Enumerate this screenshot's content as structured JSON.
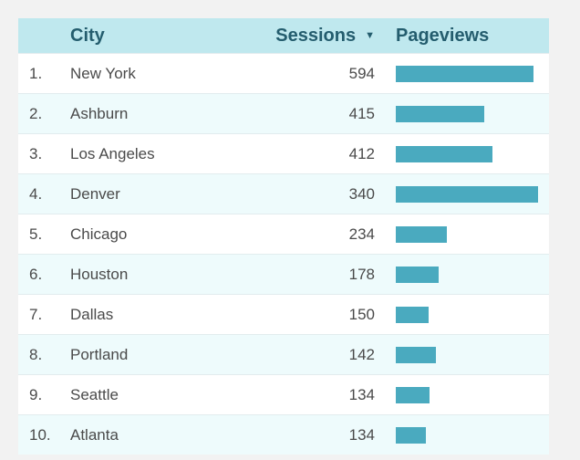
{
  "table": {
    "headers": {
      "index": "",
      "city": "City",
      "sessions": "Sessions",
      "pageviews": "Pageviews"
    },
    "sort_icon": "sort-descending-icon",
    "bar_color": "#4aaabf",
    "pageviews_max": 1,
    "rows": [
      {
        "index": "1.",
        "city": "New York",
        "sessions": "594",
        "pageviews_fraction": 0.97
      },
      {
        "index": "2.",
        "city": "Ashburn",
        "sessions": "415",
        "pageviews_fraction": 0.62
      },
      {
        "index": "3.",
        "city": "Los Angeles",
        "sessions": "412",
        "pageviews_fraction": 0.68
      },
      {
        "index": "4.",
        "city": "Denver",
        "sessions": "340",
        "pageviews_fraction": 1.0
      },
      {
        "index": "5.",
        "city": "Chicago",
        "sessions": "234",
        "pageviews_fraction": 0.36
      },
      {
        "index": "6.",
        "city": "Houston",
        "sessions": "178",
        "pageviews_fraction": 0.3
      },
      {
        "index": "7.",
        "city": "Dallas",
        "sessions": "150",
        "pageviews_fraction": 0.23
      },
      {
        "index": "8.",
        "city": "Portland",
        "sessions": "142",
        "pageviews_fraction": 0.28
      },
      {
        "index": "9.",
        "city": "Seattle",
        "sessions": "134",
        "pageviews_fraction": 0.24
      },
      {
        "index": "10.",
        "city": "Atlanta",
        "sessions": "134",
        "pageviews_fraction": 0.21
      }
    ]
  }
}
